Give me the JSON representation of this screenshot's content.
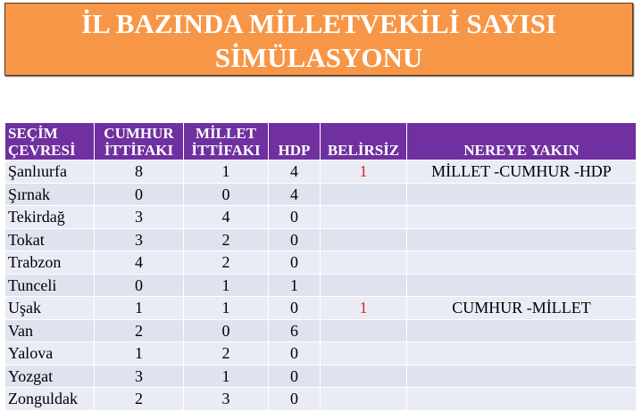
{
  "title": [
    "İL BAZINDA MİLLETVEKİLİ SAYISI",
    "SİMÜLASYONU"
  ],
  "headers": {
    "secim": [
      "SEÇİM",
      "ÇEVRESİ"
    ],
    "cumhur": [
      "CUMHUR",
      "İTTİFAKI"
    ],
    "millet": [
      "MİLLET",
      "İTTİFAKI"
    ],
    "hdp": "HDP",
    "belirsiz": "BELİRSİZ",
    "nereye": "NEREYE YAKIN"
  },
  "rows": [
    {
      "city": "Şanlıurfa",
      "cumhur": "8",
      "millet": "1",
      "hdp": "4",
      "belirsiz": "1",
      "nereye": "MİLLET -CUMHUR -HDP"
    },
    {
      "city": "Şırnak",
      "cumhur": "0",
      "millet": "0",
      "hdp": "4",
      "belirsiz": "",
      "nereye": ""
    },
    {
      "city": "Tekirdağ",
      "cumhur": "3",
      "millet": "4",
      "hdp": "0",
      "belirsiz": "",
      "nereye": ""
    },
    {
      "city": "Tokat",
      "cumhur": "3",
      "millet": "2",
      "hdp": "0",
      "belirsiz": "",
      "nereye": ""
    },
    {
      "city": "Trabzon",
      "cumhur": "4",
      "millet": "2",
      "hdp": "0",
      "belirsiz": "",
      "nereye": ""
    },
    {
      "city": "Tunceli",
      "cumhur": "0",
      "millet": "1",
      "hdp": "1",
      "belirsiz": "",
      "nereye": ""
    },
    {
      "city": "Uşak",
      "cumhur": "1",
      "millet": "1",
      "hdp": "0",
      "belirsiz": "1",
      "nereye": "CUMHUR -MİLLET"
    },
    {
      "city": "Van",
      "cumhur": "2",
      "millet": "0",
      "hdp": "6",
      "belirsiz": "",
      "nereye": ""
    },
    {
      "city": "Yalova",
      "cumhur": "1",
      "millet": "2",
      "hdp": "0",
      "belirsiz": "",
      "nereye": ""
    },
    {
      "city": "Yozgat",
      "cumhur": "3",
      "millet": "1",
      "hdp": "0",
      "belirsiz": "",
      "nereye": ""
    },
    {
      "city": "Zonguldak",
      "cumhur": "2",
      "millet": "3",
      "hdp": "0",
      "belirsiz": "",
      "nereye": ""
    }
  ],
  "colors": {
    "title_bg": "#f79646",
    "header_bg": "#7030a0",
    "belirsiz_text": "#e0201e"
  }
}
